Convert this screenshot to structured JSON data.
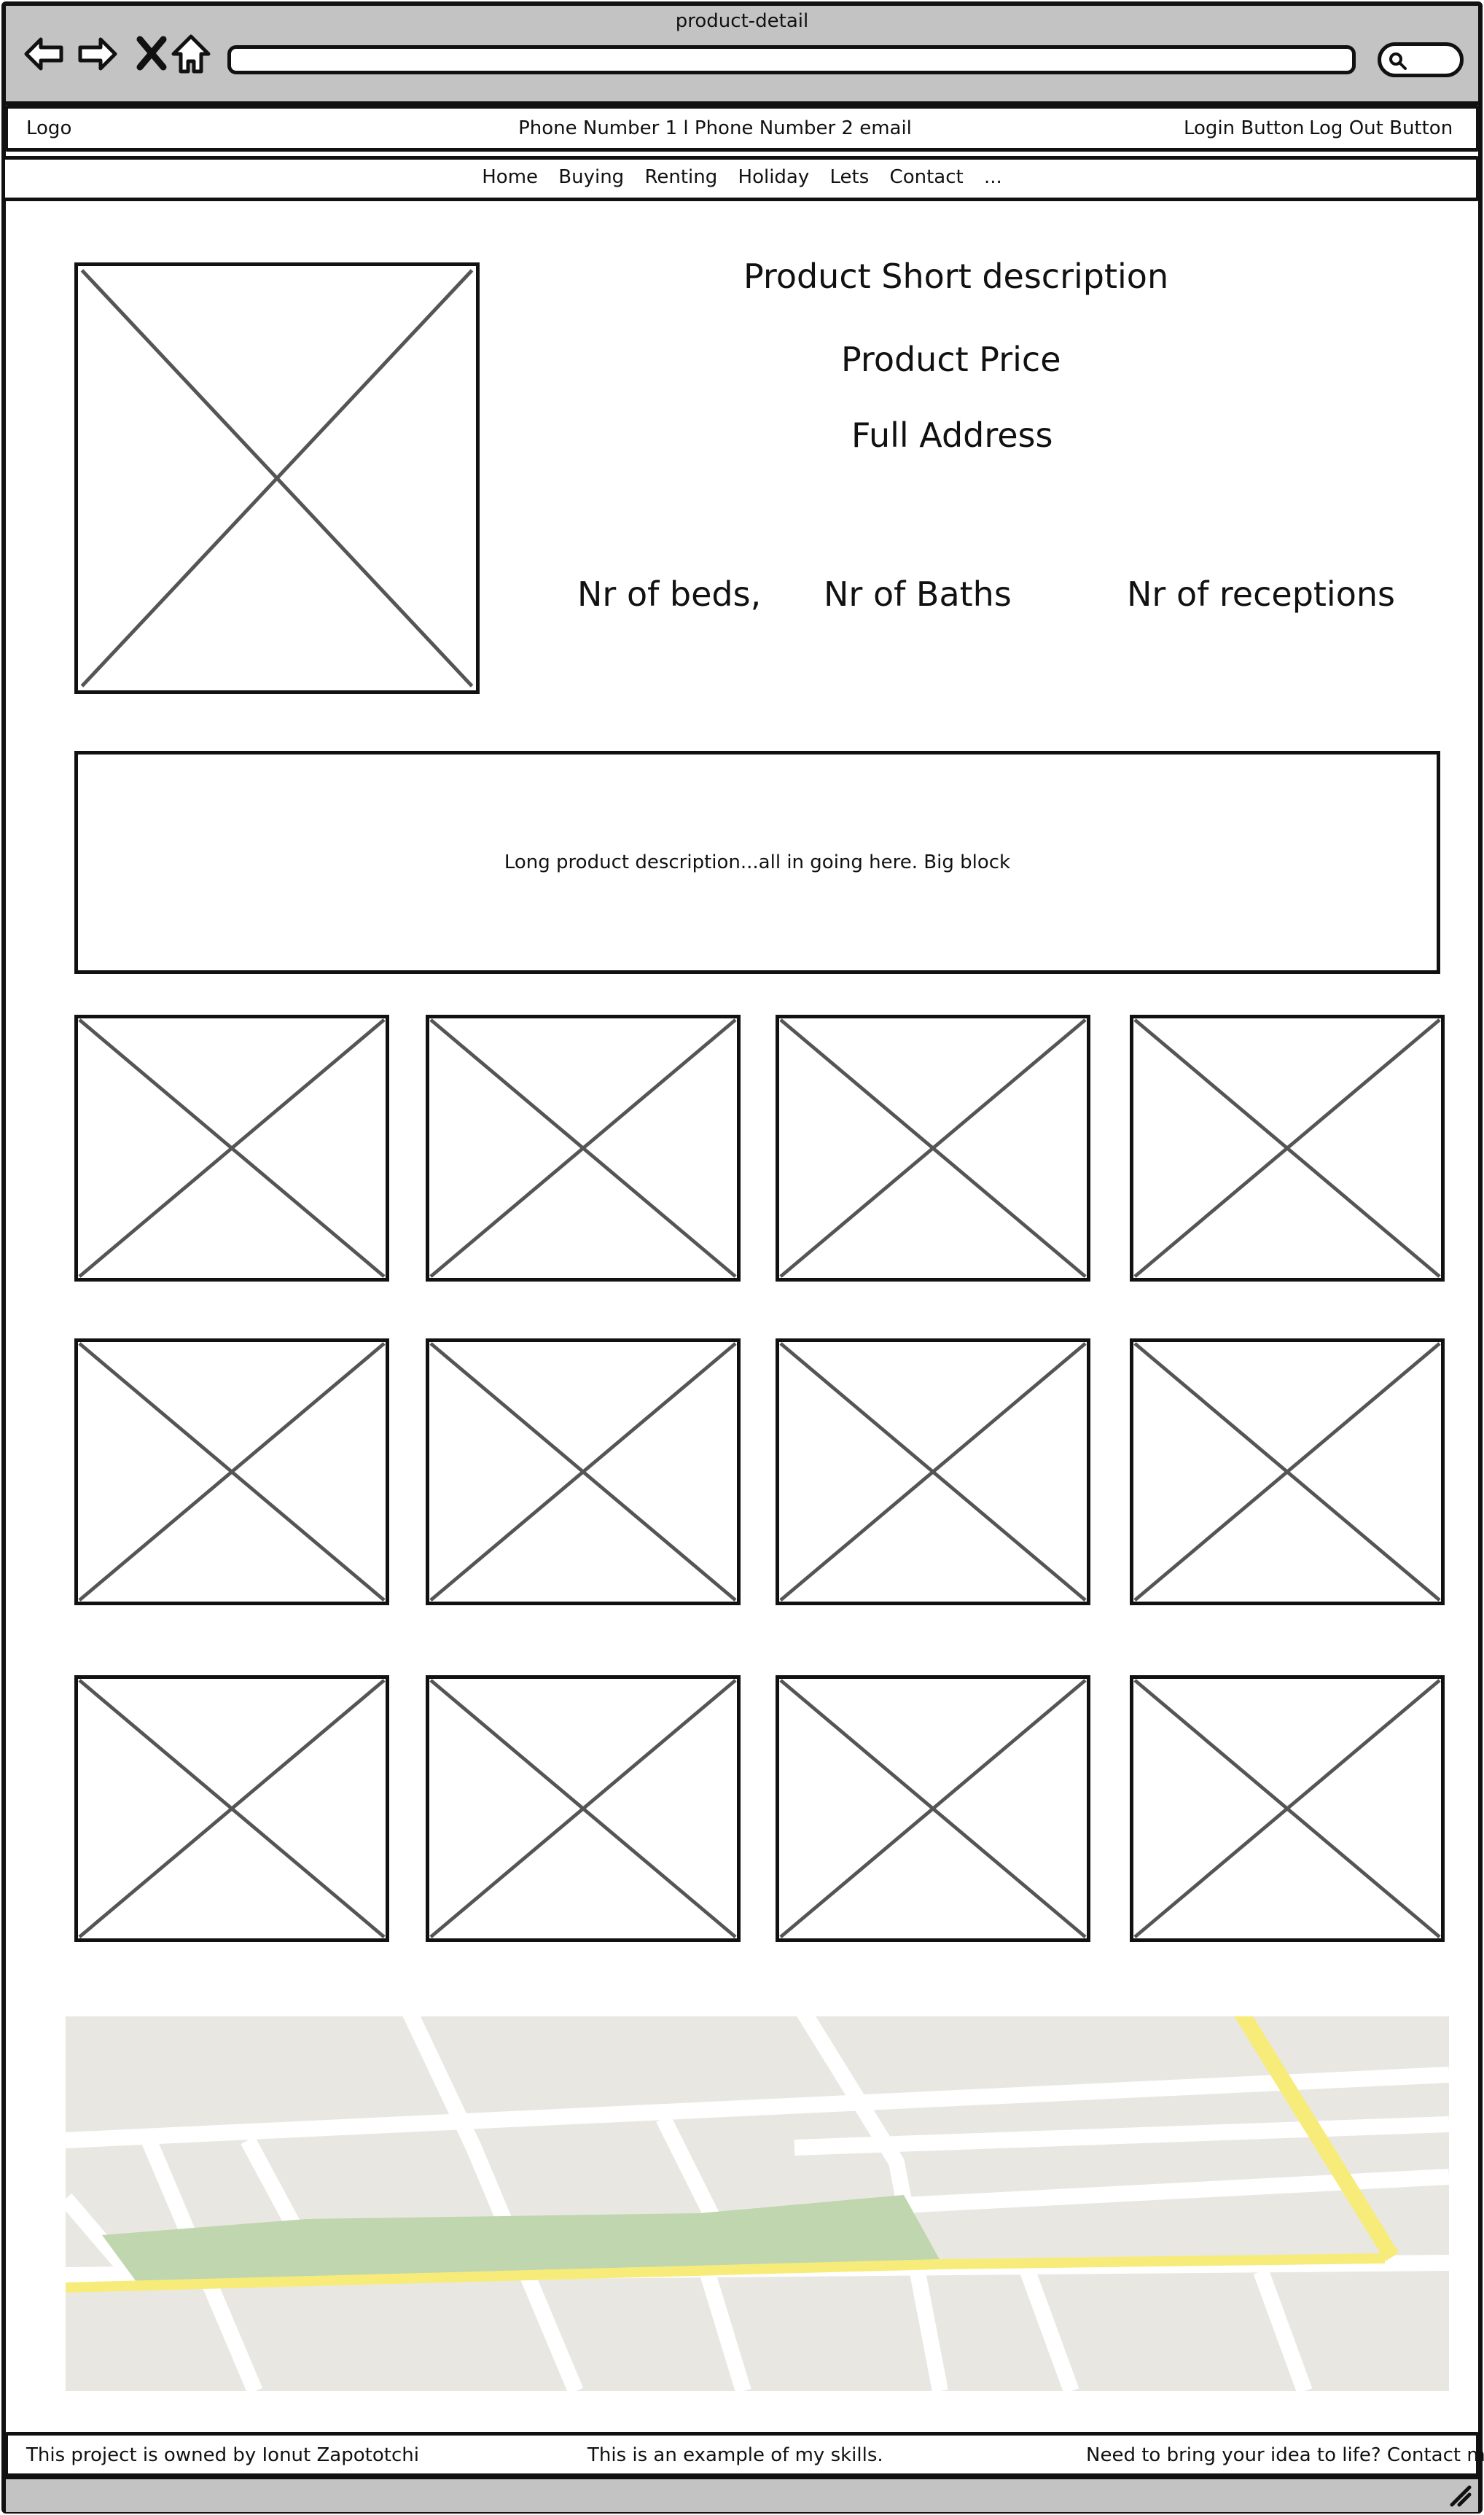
{
  "browser": {
    "title": "product-detail",
    "nav_icons": [
      "back-arrow-icon",
      "forward-arrow-icon",
      "close-icon",
      "home-icon"
    ],
    "search_icon": "search-icon"
  },
  "header": {
    "logo": "Logo",
    "contact": "Phone Number 1 l Phone Number 2  email",
    "login_label": "Login Button",
    "logout_label": "Log Out Button"
  },
  "menu": {
    "items": [
      "Home",
      "Buying",
      "Renting",
      "Holiday",
      "Lets",
      "Contact",
      "..."
    ]
  },
  "product": {
    "short_description": "Product Short description",
    "price": "Product Price",
    "address": "Full Address",
    "beds": "Nr of beds,",
    "baths": "Nr of Baths",
    "receptions": "Nr of receptions",
    "long_description": "Long product description...all in going here. Big block"
  },
  "gallery": {
    "rows": 3,
    "columns": 4
  },
  "map": {
    "colors": {
      "background": "#e9e7e2",
      "roads": "#ffffff",
      "park": "#bfd6ae",
      "highway": "#f7ec7a"
    }
  },
  "footer": {
    "owner": "This project is owned by Ionut Zapototchi",
    "example": "This is an example of my skills.",
    "cta": "Need to bring your idea to life? Contact me!"
  }
}
